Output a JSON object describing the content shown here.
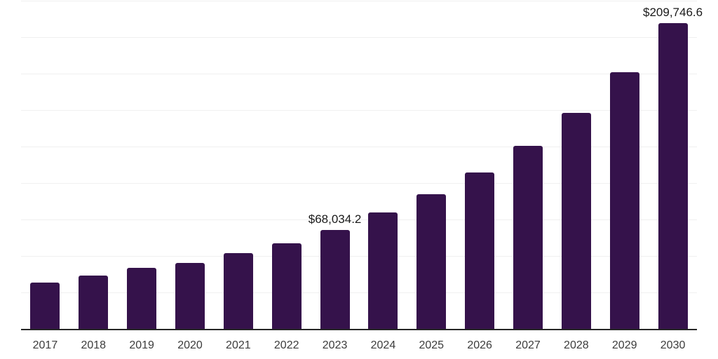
{
  "chart_data": {
    "type": "bar",
    "title": "",
    "xlabel": "",
    "ylabel": "",
    "categories": [
      "2017",
      "2018",
      "2019",
      "2020",
      "2021",
      "2022",
      "2023",
      "2024",
      "2025",
      "2026",
      "2027",
      "2028",
      "2029",
      "2030"
    ],
    "values": [
      32000,
      36650,
      41900,
      45200,
      51900,
      59000,
      68034.2,
      79900,
      92500,
      107500,
      125700,
      148300,
      175800,
      209746.6
    ],
    "point_labels": [
      null,
      null,
      null,
      null,
      null,
      null,
      "$68,034.2",
      null,
      null,
      null,
      null,
      null,
      null,
      "$209,746.6"
    ],
    "ylim": [
      0,
      225000
    ],
    "grid_step": 25000,
    "grid": "horizontal-only",
    "y_tick_labels_visible": false,
    "legend": "none",
    "colors": {
      "bar": "#35124B",
      "gridline": "#F0F0F0",
      "axis_line": "#262626",
      "tick_label": "#3C3C3C",
      "value_label": "#1A1A1A",
      "background": "#FFFFFF"
    }
  }
}
